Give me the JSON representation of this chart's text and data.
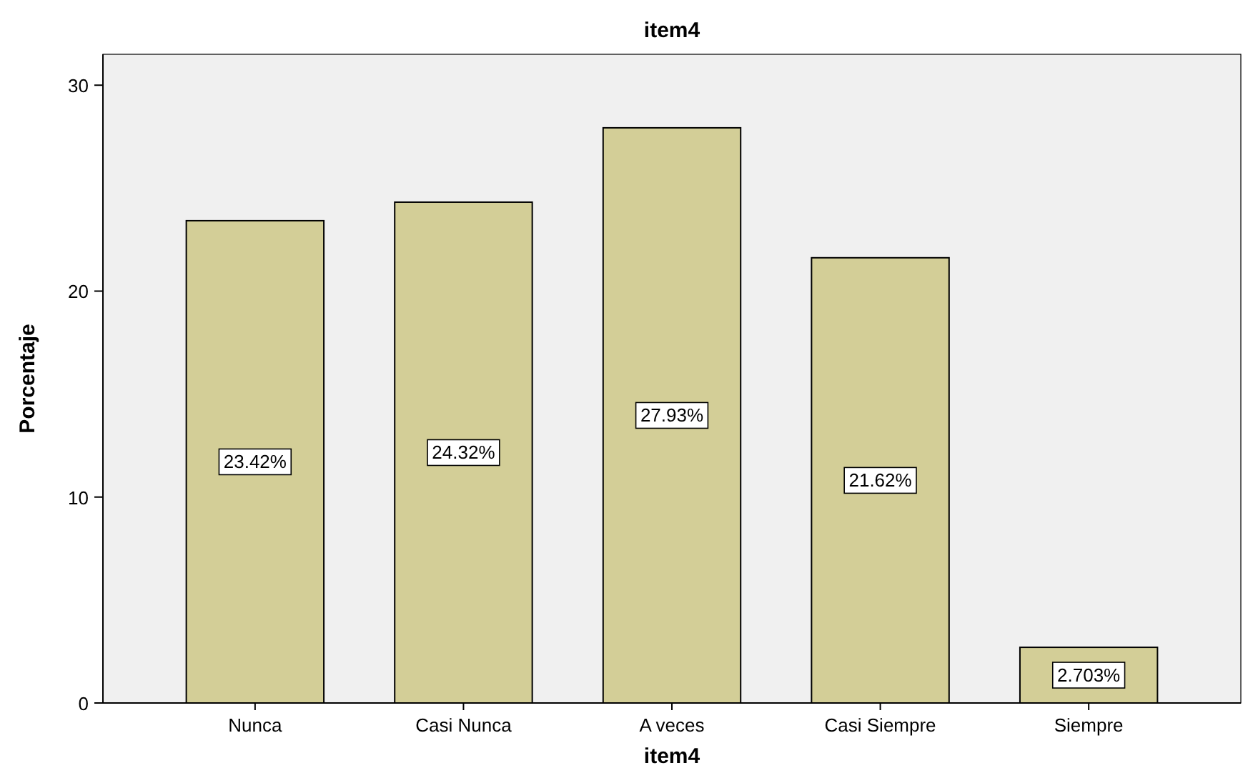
{
  "chart_data": {
    "type": "bar",
    "title": "item4",
    "xlabel": "item4",
    "ylabel": "Porcentaje",
    "categories": [
      "Nunca",
      "Casi Nunca",
      "A veces",
      "Casi Siempre",
      "Siempre"
    ],
    "values": [
      23.42,
      24.32,
      27.93,
      21.62,
      2.703
    ],
    "value_labels": [
      "23.42%",
      "24.32%",
      "27.93%",
      "21.62%",
      "2.703%"
    ],
    "color": "#d3ce97",
    "ylim": [
      0,
      31.5
    ],
    "yticks": [
      0,
      10,
      20,
      30
    ],
    "grid": false
  }
}
